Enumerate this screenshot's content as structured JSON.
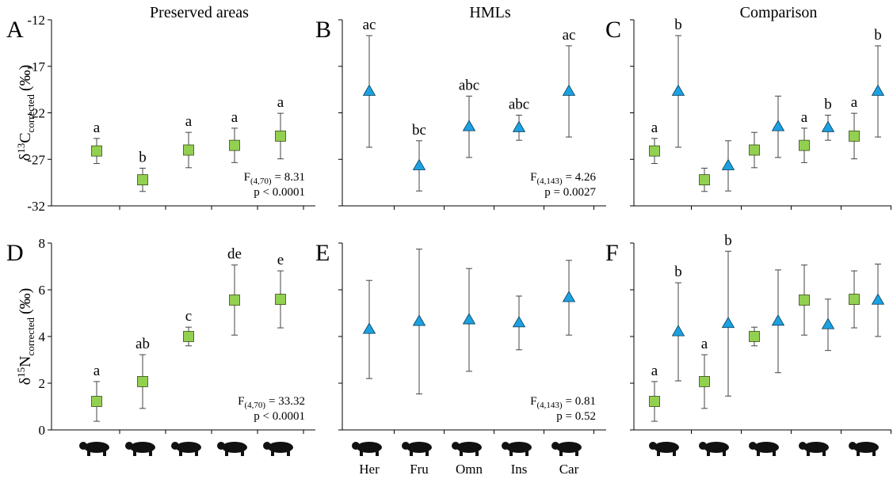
{
  "chart_data": [
    {
      "type": "scatter",
      "label": "A",
      "title": "Preserved areas",
      "ylabel": {
        "prefix": "δ",
        "sup": "13",
        "base": "C",
        "sub": "corrected",
        "unit": "(‰)"
      },
      "categories": [
        null,
        null,
        null,
        null,
        null
      ],
      "ylim": [
        -32,
        -12
      ],
      "yticks": [
        -32,
        -27,
        -22,
        -17,
        -12
      ],
      "show_tick_labels": true,
      "series": [
        {
          "color": "#92d050",
          "marker": "square",
          "values": [
            -26.1,
            -29.2,
            -26.0,
            -25.5,
            -24.5
          ],
          "errors": [
            1.35,
            1.25,
            1.9,
            1.85,
            2.45
          ],
          "value_labels": [
            "a",
            "b",
            "a",
            "a",
            "a"
          ]
        }
      ],
      "stats": {
        "label": "F",
        "df": "(4,70)",
        "value": "= 8.31",
        "p": "p < 0.0001"
      }
    },
    {
      "type": "scatter",
      "label": "B",
      "title": "HMLs",
      "categories": [
        null,
        null,
        null,
        null,
        null
      ],
      "ylim": [
        -32,
        -12
      ],
      "yticks": [
        -32,
        -27,
        -22,
        -17,
        -12
      ],
      "show_tick_labels": false,
      "series": [
        {
          "color": "#1ba1e2",
          "marker": "triangle",
          "values": [
            -19.7,
            -27.7,
            -23.5,
            -23.6,
            -19.7
          ],
          "errors": [
            6.0,
            2.7,
            3.3,
            1.35,
            4.9
          ],
          "value_labels": [
            "ac",
            "bc",
            "abc",
            "abc",
            "ac"
          ]
        }
      ],
      "stats": {
        "label": "F",
        "df": "(4,143)",
        "value": "= 4.26",
        "p": "p = 0.0027"
      }
    },
    {
      "type": "scatter",
      "label": "C",
      "title": "Comparison",
      "categories": [
        null,
        null,
        null,
        null,
        null
      ],
      "ylim": [
        -32,
        -12
      ],
      "yticks": [
        -32,
        -27,
        -22,
        -17,
        -12
      ],
      "show_tick_labels": false,
      "series": [
        {
          "color": "#92d050",
          "marker": "square",
          "values": [
            -26.1,
            -29.2,
            -26.0,
            -25.5,
            -24.5
          ],
          "errors": [
            1.35,
            1.25,
            1.9,
            1.85,
            2.45
          ],
          "value_labels": [
            "a",
            null,
            null,
            "a",
            "a"
          ]
        },
        {
          "color": "#1ba1e2",
          "marker": "triangle",
          "values": [
            -19.7,
            -27.7,
            -23.5,
            -23.6,
            -19.7
          ],
          "errors": [
            6.0,
            2.7,
            3.3,
            1.35,
            4.9
          ],
          "value_labels": [
            "b",
            null,
            null,
            "b",
            "b"
          ]
        }
      ]
    },
    {
      "type": "scatter",
      "label": "D",
      "ylabel": {
        "prefix": "δ",
        "sup": "15",
        "base": "N",
        "sub": "corrected",
        "unit": "(‰)"
      },
      "categories": [
        null,
        null,
        null,
        null,
        null
      ],
      "ylim": [
        0,
        8
      ],
      "yticks": [
        0,
        2,
        4,
        6,
        8
      ],
      "show_tick_labels": true,
      "series": [
        {
          "color": "#92d050",
          "marker": "square",
          "values": [
            1.22,
            2.07,
            4.0,
            5.56,
            5.59
          ],
          "errors": [
            0.85,
            1.15,
            0.4,
            1.5,
            1.22
          ],
          "value_labels": [
            "a",
            "ab",
            "c",
            "de",
            "e"
          ]
        }
      ],
      "stats": {
        "label": "F",
        "df": "(4,70)",
        "value": "= 33.32",
        "p": "p < 0.0001"
      }
    },
    {
      "type": "scatter",
      "label": "E",
      "categories": [
        "Her",
        "Fru",
        "Omn",
        "Ins",
        "Car"
      ],
      "ylim": [
        0,
        8
      ],
      "yticks": [
        0,
        2,
        4,
        6,
        8
      ],
      "show_tick_labels": false,
      "series": [
        {
          "color": "#1ba1e2",
          "marker": "triangle",
          "values": [
            4.3,
            4.64,
            4.71,
            4.58,
            5.66
          ],
          "errors": [
            2.1,
            3.1,
            2.2,
            1.15,
            1.6
          ]
        }
      ],
      "stats": {
        "label": "F",
        "df": "(4,143)",
        "value": "= 0.81",
        "p": "p = 0.52"
      }
    },
    {
      "type": "scatter",
      "label": "F",
      "categories": [
        null,
        null,
        null,
        null,
        null
      ],
      "ylim": [
        0,
        8
      ],
      "yticks": [
        0,
        2,
        4,
        6,
        8
      ],
      "show_tick_labels": false,
      "series": [
        {
          "color": "#92d050",
          "marker": "square",
          "values": [
            1.22,
            2.07,
            4.0,
            5.56,
            5.59
          ],
          "errors": [
            0.85,
            1.15,
            0.4,
            1.5,
            1.22
          ],
          "value_labels": [
            "a",
            "a",
            null,
            null,
            null
          ]
        },
        {
          "color": "#1ba1e2",
          "marker": "triangle",
          "values": [
            4.2,
            4.55,
            4.65,
            4.5,
            5.55
          ],
          "errors": [
            2.1,
            3.1,
            2.2,
            1.1,
            1.55
          ],
          "value_labels": [
            "b",
            "b",
            null,
            null,
            null
          ]
        }
      ]
    }
  ]
}
